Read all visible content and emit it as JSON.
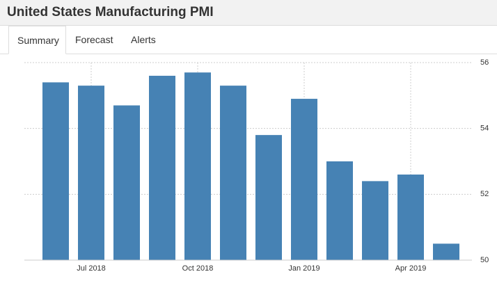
{
  "header": {
    "title": "United States Manufacturing PMI"
  },
  "tabs": [
    "Summary",
    "Forecast",
    "Alerts"
  ],
  "chart_data": {
    "type": "bar",
    "categories": [
      null,
      "Jul 2018",
      null,
      null,
      "Oct 2018",
      null,
      null,
      "Jan 2019",
      null,
      null,
      "Apr 2019",
      null
    ],
    "values": [
      55.4,
      55.3,
      54.7,
      55.6,
      55.7,
      55.3,
      53.8,
      54.9,
      53.0,
      52.4,
      52.6,
      50.5
    ],
    "color": "#4682b4",
    "ylim": [
      50,
      56
    ],
    "yticks": [
      50,
      52,
      54,
      56
    ],
    "grid": true
  }
}
